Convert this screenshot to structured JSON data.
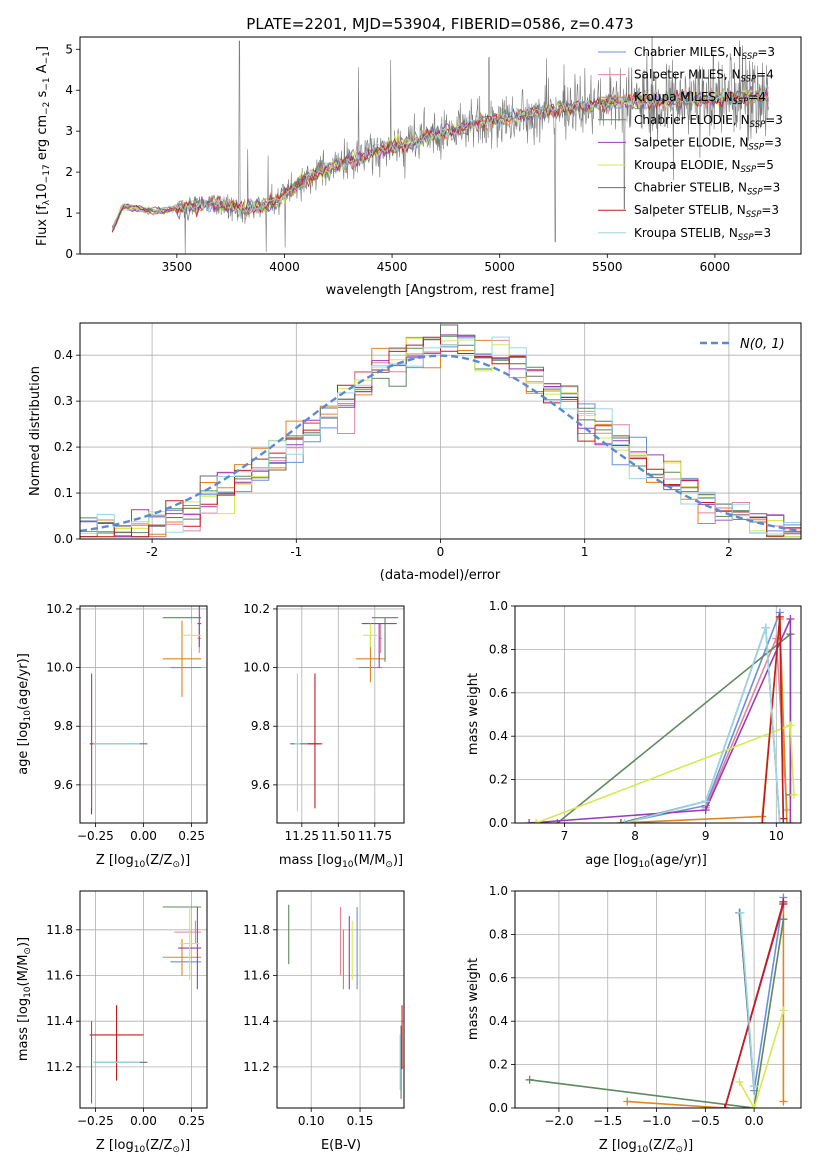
{
  "colors": {
    "Chabrier MILES": "#6b8fd9",
    "Salpeter MILES": "#e8839c",
    "Kroupa MILES": "#e0861e",
    "Chabrier ELODIE": "#5d8a5e",
    "Salpeter ELODIE": "#9a3bb8",
    "Kroupa ELODIE": "#d4ea4f",
    "Chabrier STELIB": "#6e6e6e",
    "Salpeter STELIB": "#c41c1c",
    "Kroupa STELIB": "#9ad8e6"
  },
  "chart_data": [
    {
      "type": "line",
      "title": "PLATE=2201, MJD=53904, FIBERID=0586, z=0.473",
      "xlabel": "wavelength [Angstrom, rest frame]",
      "ylabel_parts": [
        "Flux [f",
        "λ",
        "10",
        "−17",
        " erg cm",
        "−2",
        " s",
        "−1",
        " A",
        "−1",
        "]"
      ],
      "xlim": [
        3050,
        6400
      ],
      "ylim": [
        0,
        5.3
      ],
      "xticks": [
        3500,
        4000,
        4500,
        5000,
        5500,
        6000
      ],
      "yticks": [
        0,
        1,
        2,
        3,
        4,
        5
      ],
      "grid": false,
      "legend_position": "top-right",
      "legend": [
        {
          "model": "Chabrier MILES",
          "text": "Chabrier MILES, N",
          "sub": "SSP",
          "n": "=3"
        },
        {
          "model": "Salpeter MILES",
          "text": "Salpeter MILES, N",
          "sub": "SSP",
          "n": "=4"
        },
        {
          "model": "Kroupa MILES",
          "text": "Kroupa MILES, N",
          "sub": "SSP",
          "n": "=4"
        },
        {
          "model": "Chabrier ELODIE",
          "text": "Chabrier ELODIE, N",
          "sub": "SSP",
          "n": "=3"
        },
        {
          "model": "Salpeter ELODIE",
          "text": "Salpeter ELODIE, N",
          "sub": "SSP",
          "n": "=3"
        },
        {
          "model": "Kroupa ELODIE",
          "text": "Kroupa ELODIE, N",
          "sub": "SSP",
          "n": "=5"
        },
        {
          "model": "Chabrier STELIB",
          "text": "Chabrier STELIB, N",
          "sub": "SSP",
          "n": "=3"
        },
        {
          "model": "Salpeter STELIB",
          "text": "Salpeter STELIB, N",
          "sub": "SSP",
          "n": "=3"
        },
        {
          "model": "Kroupa STELIB",
          "text": "Kroupa STELIB, N",
          "sub": "SSP",
          "n": "=3"
        }
      ],
      "continuum": [
        [
          3200,
          0.6
        ],
        [
          3250,
          1.15
        ],
        [
          3400,
          1.05
        ],
        [
          3500,
          1.1
        ],
        [
          3700,
          1.25
        ],
        [
          3800,
          1.1
        ],
        [
          3950,
          1.25
        ],
        [
          4100,
          1.85
        ],
        [
          4300,
          2.3
        ],
        [
          4500,
          2.6
        ],
        [
          4700,
          2.9
        ],
        [
          4900,
          3.2
        ],
        [
          5100,
          3.4
        ],
        [
          5300,
          3.55
        ],
        [
          5500,
          3.7
        ],
        [
          5800,
          3.75
        ],
        [
          6000,
          3.8
        ],
        [
          6250,
          3.85
        ]
      ]
    },
    {
      "type": "line",
      "title": "",
      "xlabel": "(data-model)/error",
      "ylabel": "Normed distribution",
      "xlim": [
        -2.5,
        2.5
      ],
      "ylim": [
        0,
        0.47
      ],
      "xticks": [
        -2,
        -1,
        0,
        1,
        2
      ],
      "yticks": [
        0.0,
        0.1,
        0.2,
        0.3,
        0.4
      ],
      "grid": true,
      "legend_position": "top-right",
      "legend": "N(0, 1)",
      "bins": 42
    },
    {
      "type": "scatter",
      "xlabel_parts": [
        "Z [log",
        "10",
        "(Z/Z",
        "⊙",
        ")]"
      ],
      "ylabel_parts": [
        "age  [log",
        "10",
        "(age/yr)]"
      ],
      "xlim": [
        -0.33,
        0.33
      ],
      "ylim": [
        9.47,
        10.21
      ],
      "xticks": [
        -0.25,
        0.0,
        0.25
      ],
      "yticks": [
        9.6,
        9.8,
        10.0,
        10.2
      ],
      "grid": true,
      "points": [
        {
          "model": "Chabrier MILES",
          "x": 0.22,
          "y": 10.0,
          "xerr": [
            0.08,
            0.08
          ],
          "yerr": [
            0,
            0
          ]
        },
        {
          "model": "Salpeter MILES",
          "x": 0.29,
          "y": 10.1,
          "xerr": [
            0.01,
            0.01
          ],
          "yerr": [
            0.05,
            0.05
          ]
        },
        {
          "model": "Kroupa MILES",
          "x": 0.2,
          "y": 10.03,
          "xerr": [
            0.1,
            0.1
          ],
          "yerr": [
            0.13,
            0.13
          ]
        },
        {
          "model": "Chabrier ELODIE",
          "x": 0.2,
          "y": 10.17,
          "xerr": [
            0.1,
            0.1
          ],
          "yerr": [
            0,
            0
          ]
        },
        {
          "model": "Salpeter ELODIE",
          "x": 0.29,
          "y": 10.15,
          "xerr": [
            0.01,
            0.01
          ],
          "yerr": [
            0.08,
            0.08
          ]
        },
        {
          "model": "Kroupa ELODIE",
          "x": 0.25,
          "y": 10.11,
          "xerr": [
            0.05,
            0.05
          ],
          "yerr": [
            0.04,
            0.04
          ]
        },
        {
          "model": "Chabrier STELIB",
          "x": -0.12,
          "y": 9.74,
          "xerr": [
            0.14,
            0.14
          ],
          "yerr": [
            0,
            0
          ]
        },
        {
          "model": "Salpeter STELIB",
          "x": -0.27,
          "y": 9.74,
          "xerr": [
            0.01,
            0.01
          ],
          "yerr": [
            0.24,
            0.24
          ]
        },
        {
          "model": "Kroupa STELIB",
          "x": -0.14,
          "y": 9.74,
          "xerr": [
            0.12,
            0.12
          ],
          "yerr": [
            0,
            0
          ]
        },
        {
          "model": "Chabrier STELIB",
          "x": -0.27,
          "y": 9.75,
          "xerr": [
            0,
            0
          ],
          "yerr": [
            0.23,
            0.23
          ]
        }
      ]
    },
    {
      "type": "scatter",
      "xlabel_parts": [
        "mass [log",
        "10",
        "(M/M",
        "⊙",
        ")]"
      ],
      "xlim": [
        11.08,
        11.95
      ],
      "ylim": [
        9.47,
        10.21
      ],
      "xticks": [
        11.25,
        11.5,
        11.75
      ],
      "xticklabels": [
        "11.25",
        "11.50",
        "11.75"
      ],
      "yticks": [
        9.6,
        9.8,
        10.0,
        10.2
      ],
      "grid": true,
      "points": [
        {
          "model": "Chabrier MILES",
          "x": 11.72,
          "y": 10.0,
          "xerr": [
            0.08,
            0.08
          ],
          "yerr": [
            0,
            0
          ]
        },
        {
          "model": "Salpeter MILES",
          "x": 11.79,
          "y": 10.1,
          "xerr": [
            0.01,
            0.01
          ],
          "yerr": [
            0.05,
            0.05
          ]
        },
        {
          "model": "Kroupa MILES",
          "x": 11.72,
          "y": 10.03,
          "xerr": [
            0.1,
            0.1
          ],
          "yerr": [
            0.08,
            0.08
          ]
        },
        {
          "model": "Chabrier ELODIE",
          "x": 11.82,
          "y": 10.17,
          "xerr": [
            0.09,
            0.09
          ],
          "yerr": [
            0.15,
            0.0
          ]
        },
        {
          "model": "Salpeter ELODIE",
          "x": 11.78,
          "y": 10.15,
          "xerr": [
            0.12,
            0.12
          ],
          "yerr": [
            0.15,
            0.0
          ]
        },
        {
          "model": "Kroupa ELODIE",
          "x": 11.72,
          "y": 10.11,
          "xerr": [
            0.05,
            0.05
          ],
          "yerr": [
            0.04,
            0.04
          ]
        },
        {
          "model": "Chabrier STELIB",
          "x": 11.27,
          "y": 9.74,
          "xerr": [
            0.1,
            0.1
          ],
          "yerr": [
            0,
            0
          ]
        },
        {
          "model": "Salpeter STELIB",
          "x": 11.34,
          "y": 9.74,
          "xerr": [
            0.05,
            0.05
          ],
          "yerr": [
            0.22,
            0.24
          ]
        },
        {
          "model": "Kroupa STELIB",
          "x": 11.22,
          "y": 9.74,
          "xerr": [
            0.02,
            0.02
          ],
          "yerr": [
            0.23,
            0.24
          ]
        }
      ]
    },
    {
      "type": "line",
      "xlabel_parts": [
        "age  [log",
        "10",
        "(age/yr)]"
      ],
      "ylabel": "mass weight",
      "xlim": [
        6.3,
        10.35
      ],
      "ylim": [
        0,
        1.0
      ],
      "xticks": [
        7,
        8,
        9,
        10
      ],
      "yticks": [
        0.0,
        0.2,
        0.4,
        0.6,
        0.8,
        1.0
      ],
      "grid": true,
      "series": [
        {
          "model": "Chabrier MILES",
          "x": [
            7.8,
            9.0,
            10.05,
            10.1
          ],
          "y": [
            0.0,
            0.08,
            0.97,
            0.0
          ]
        },
        {
          "model": "Salpeter MILES",
          "x": [
            9.0,
            10.0,
            10.15
          ],
          "y": [
            0.07,
            0.85,
            0.06
          ]
        },
        {
          "model": "Kroupa MILES",
          "x": [
            7.8,
            9.8,
            10.05,
            10.15
          ],
          "y": [
            0.0,
            0.03,
            0.94,
            0.0
          ]
        },
        {
          "model": "Chabrier ELODIE",
          "x": [
            6.9,
            10.2,
            10.2
          ],
          "y": [
            0.0,
            0.87,
            0.13
          ]
        },
        {
          "model": "Salpeter ELODIE",
          "x": [
            6.5,
            9.0,
            10.2,
            10.2
          ],
          "y": [
            0.0,
            0.06,
            0.94,
            0.0
          ]
        },
        {
          "model": "Kroupa ELODIE",
          "x": [
            6.6,
            10.2,
            10.25
          ],
          "y": [
            0.0,
            0.45,
            0.13
          ]
        },
        {
          "model": "Chabrier STELIB",
          "x": [
            7.8,
            9.0,
            9.85,
            10.05
          ],
          "y": [
            0.0,
            0.1,
            0.9,
            0.0
          ]
        },
        {
          "model": "Salpeter STELIB",
          "x": [
            9.8,
            10.05,
            10.1
          ],
          "y": [
            0.0,
            0.95,
            0.02
          ]
        },
        {
          "model": "Kroupa STELIB",
          "x": [
            7.85,
            9.0,
            9.85,
            10.05
          ],
          "y": [
            0.0,
            0.1,
            0.9,
            0.0
          ]
        }
      ]
    },
    {
      "type": "scatter",
      "xlabel_parts": [
        "Z [log",
        "10",
        "(Z/Z",
        "⊙",
        ")]"
      ],
      "ylabel_parts": [
        "mass [log",
        "10",
        "(M/M",
        "⊙",
        ")]"
      ],
      "xlim": [
        -0.33,
        0.33
      ],
      "ylim": [
        11.02,
        11.97
      ],
      "xticks": [
        -0.25,
        0.0,
        0.25
      ],
      "yticks": [
        11.2,
        11.4,
        11.6,
        11.8
      ],
      "grid": true,
      "points": [
        {
          "model": "Chabrier MILES",
          "x": 0.22,
          "y": 11.66,
          "xerr": [
            0.08,
            0.08
          ],
          "yerr": [
            0,
            0
          ]
        },
        {
          "model": "Salpeter MILES",
          "x": 0.27,
          "y": 11.79,
          "xerr": [
            0.11,
            0.03
          ],
          "yerr": [
            0.05,
            0.05
          ]
        },
        {
          "model": "Kroupa MILES",
          "x": 0.2,
          "y": 11.68,
          "xerr": [
            0.1,
            0.1
          ],
          "yerr": [
            0.08,
            0.08
          ]
        },
        {
          "model": "Chabrier ELODIE",
          "x": 0.2,
          "y": 11.9,
          "xerr": [
            0.1,
            0.1
          ],
          "yerr": [
            0,
            0
          ]
        },
        {
          "model": "Salpeter ELODIE",
          "x": 0.28,
          "y": 11.72,
          "xerr": [
            0.1,
            0.02
          ],
          "yerr": [
            0.18,
            0.18
          ]
        },
        {
          "model": "Kroupa ELODIE",
          "x": 0.24,
          "y": 11.74,
          "xerr": [
            0.05,
            0.05
          ],
          "yerr": [
            0.16,
            0.16
          ]
        },
        {
          "model": "Chabrier STELIB",
          "x": -0.12,
          "y": 11.22,
          "xerr": [
            0.14,
            0.14
          ],
          "yerr": [
            0,
            0
          ]
        },
        {
          "model": "Salpeter STELIB",
          "x": -0.14,
          "y": 11.34,
          "xerr": [
            0.14,
            0.14
          ],
          "yerr": [
            0.2,
            0.13
          ]
        },
        {
          "model": "Kroupa STELIB",
          "x": -0.14,
          "y": 11.22,
          "xerr": [
            0.12,
            0.12
          ],
          "yerr": [
            0,
            0
          ]
        },
        {
          "model": "Chabrier STELIB",
          "x": -0.27,
          "y": 11.22,
          "xerr": [
            0,
            0
          ],
          "yerr": [
            0.18,
            0.18
          ]
        }
      ]
    },
    {
      "type": "scatter",
      "xlabel": "E(B-V)",
      "xlim": [
        0.065,
        0.195
      ],
      "ylim": [
        11.02,
        11.97
      ],
      "xticks": [
        0.1,
        0.15
      ],
      "xticklabels": [
        "0.10",
        "0.15"
      ],
      "yticks": [
        11.2,
        11.4,
        11.6,
        11.8
      ],
      "grid": true,
      "points": [
        {
          "model": "Chabrier ELODIE",
          "x": 0.077,
          "y": 11.78,
          "xerr": [
            0,
            0
          ],
          "yerr": [
            0.13,
            0.13
          ]
        },
        {
          "model": "Salpeter MILES",
          "x": 0.13,
          "y": 11.75,
          "xerr": [
            0,
            0
          ],
          "yerr": [
            0.15,
            0.15
          ]
        },
        {
          "model": "Kroupa MILES",
          "x": 0.133,
          "y": 11.67,
          "xerr": [
            0,
            0
          ],
          "yerr": [
            0.13,
            0.13
          ]
        },
        {
          "model": "Salpeter ELODIE",
          "x": 0.139,
          "y": 11.7,
          "xerr": [
            0,
            0
          ],
          "yerr": [
            0.16,
            0.16
          ]
        },
        {
          "model": "Kroupa ELODIE",
          "x": 0.142,
          "y": 11.71,
          "xerr": [
            0,
            0
          ],
          "yerr": [
            0.13,
            0.13
          ]
        },
        {
          "model": "Chabrier MILES",
          "x": 0.147,
          "y": 11.72,
          "xerr": [
            0,
            0
          ],
          "yerr": [
            0.18,
            0.18
          ]
        },
        {
          "model": "Salpeter STELIB",
          "x": 0.193,
          "y": 11.33,
          "xerr": [
            0,
            0
          ],
          "yerr": [
            0.14,
            0.14
          ]
        },
        {
          "model": "Chabrier STELIB",
          "x": 0.192,
          "y": 11.22,
          "xerr": [
            0,
            0
          ],
          "yerr": [
            0.16,
            0.16
          ]
        },
        {
          "model": "Kroupa STELIB",
          "x": 0.191,
          "y": 11.22,
          "xerr": [
            0,
            0
          ],
          "yerr": [
            0.12,
            0.12
          ]
        }
      ]
    },
    {
      "type": "line",
      "xlabel_parts": [
        "Z [log",
        "10",
        "(Z/Z",
        "⊙",
        ")]"
      ],
      "ylabel": "mass weight",
      "xlim": [
        -2.45,
        0.48
      ],
      "ylim": [
        0,
        1.0
      ],
      "xticks": [
        -2.0,
        -1.5,
        -1.0,
        -0.5,
        0.0
      ],
      "xticklabels": [
        "−2.0",
        "−1.5",
        "−1.0",
        "−0.5",
        "0.0"
      ],
      "yticks": [
        0.0,
        0.2,
        0.4,
        0.6,
        0.8,
        1.0
      ],
      "grid": true,
      "series": [
        {
          "model": "Chabrier MILES",
          "x": [
            -0.15,
            0.0,
            0.3
          ],
          "y": [
            0.9,
            0.08,
            0.97
          ]
        },
        {
          "model": "Salpeter MILES",
          "x": [
            -0.3,
            0.3
          ],
          "y": [
            0.0,
            0.94
          ]
        },
        {
          "model": "Kroupa MILES",
          "x": [
            -1.3,
            -0.3,
            0.3,
            0.3
          ],
          "y": [
            0.03,
            0.0,
            0.94,
            0.03
          ]
        },
        {
          "model": "Chabrier ELODIE",
          "x": [
            -2.3,
            0.0,
            0.3
          ],
          "y": [
            0.13,
            0.0,
            0.87
          ]
        },
        {
          "model": "Salpeter ELODIE",
          "x": [
            -0.3,
            0.3
          ],
          "y": [
            0.0,
            0.94
          ]
        },
        {
          "model": "Kroupa ELODIE",
          "x": [
            -0.15,
            0.0,
            0.3
          ],
          "y": [
            0.12,
            0.0,
            0.45
          ]
        },
        {
          "model": "Chabrier STELIB",
          "x": [
            -0.15,
            0.0
          ],
          "y": [
            0.9,
            0.1
          ]
        },
        {
          "model": "Salpeter STELIB",
          "x": [
            -0.3,
            0.3
          ],
          "y": [
            0.0,
            0.95
          ]
        },
        {
          "model": "Kroupa STELIB",
          "x": [
            -0.14,
            0.0
          ],
          "y": [
            0.9,
            0.1
          ]
        }
      ]
    }
  ]
}
